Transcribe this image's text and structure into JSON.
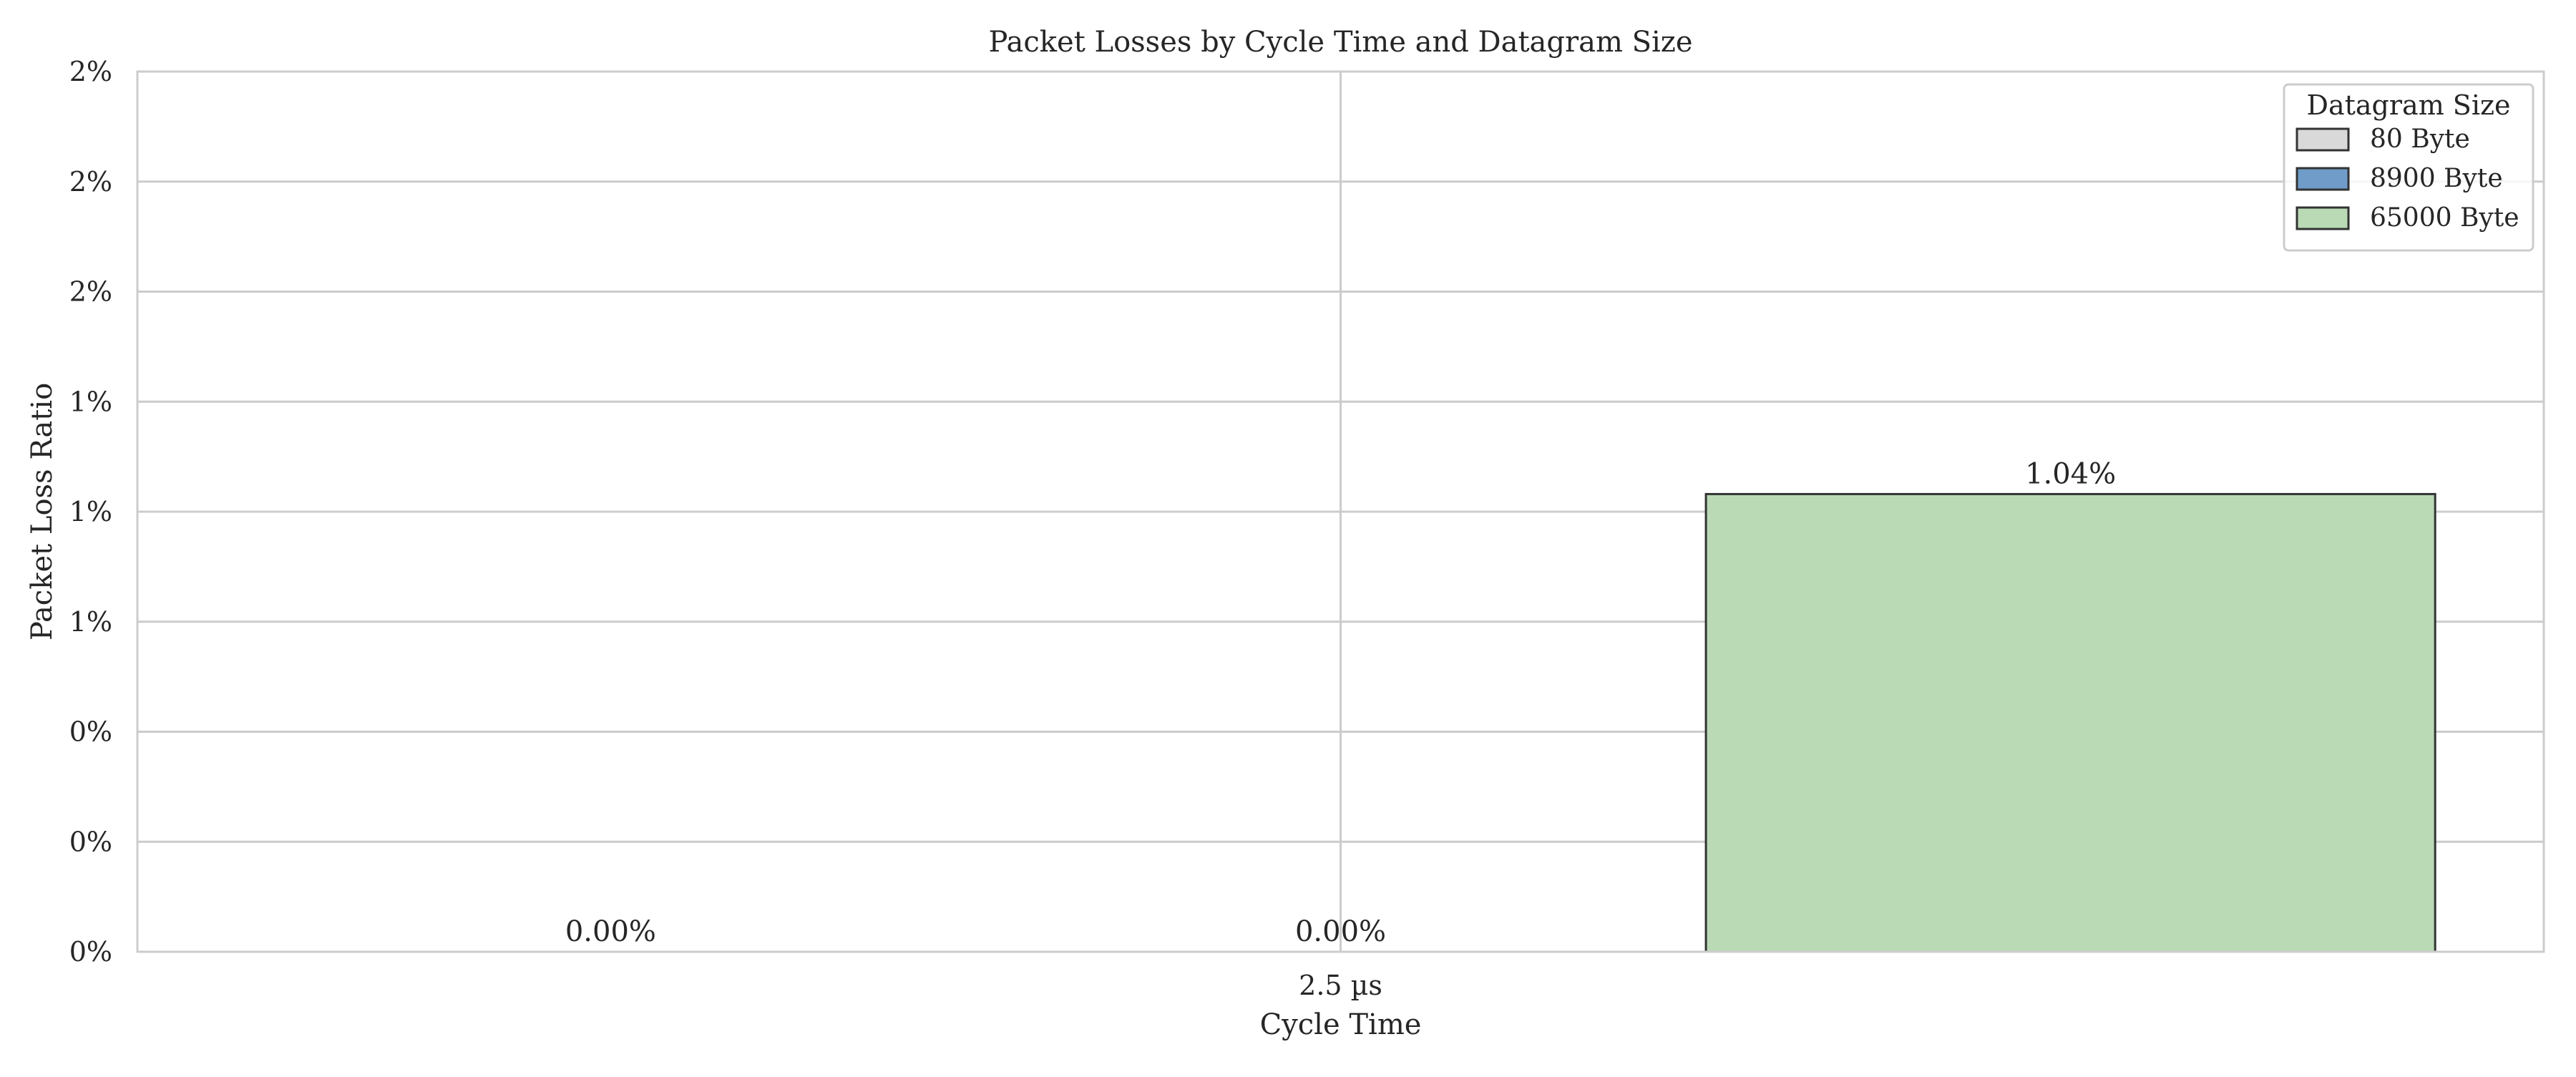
{
  "chart_data": {
    "type": "bar",
    "title": "Packet Losses by Cycle Time and Datagram Size",
    "xlabel": "Cycle Time",
    "ylabel": "Packet Loss Ratio",
    "categories": [
      "2.5 µs"
    ],
    "series": [
      {
        "name": "80 Byte",
        "values": [
          0.0
        ],
        "label": "0.00%",
        "color": "#d9d9d9"
      },
      {
        "name": "8900 Byte",
        "values": [
          0.0
        ],
        "label": "0.00%",
        "color": "#6f9cc8"
      },
      {
        "name": "65000 Byte",
        "values": [
          1.04
        ],
        "label": "1.04%",
        "color": "#b9dab5"
      }
    ],
    "ylim": [
      0,
      2.0
    ],
    "yticks": [
      0,
      0.25,
      0.5,
      0.75,
      1.0,
      1.25,
      1.5,
      1.75,
      2.0
    ],
    "ytick_labels": [
      "0%",
      "0%",
      "0%",
      "1%",
      "1%",
      "1%",
      "2%",
      "2%",
      "2%"
    ],
    "grid": true,
    "legend": {
      "title": "Datagram Size",
      "position": "top-right",
      "entries": [
        "80 Byte",
        "8900 Byte",
        "65000 Byte"
      ]
    }
  }
}
